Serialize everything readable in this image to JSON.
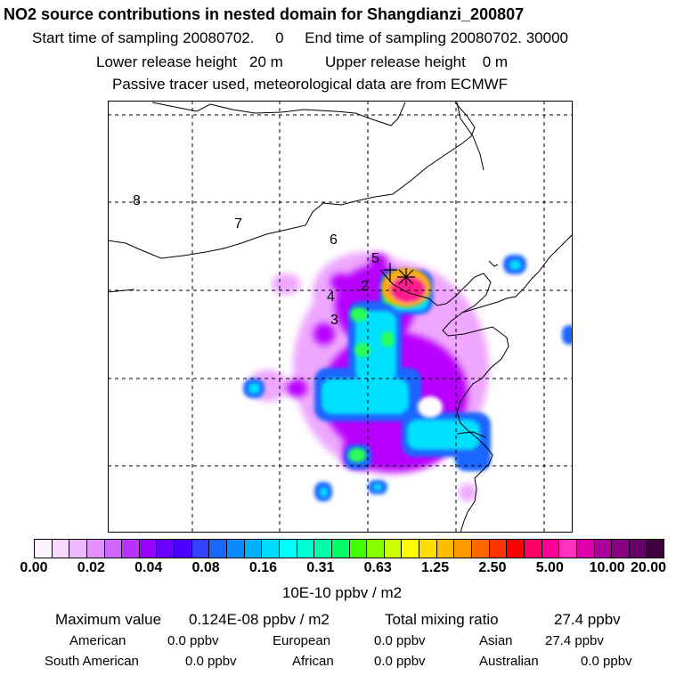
{
  "header": {
    "title": "NO2 source contributions in nested domain for Shangdianzi_200807",
    "sampling_line": "Start time of sampling 20080702.     0     End time of sampling 20080702. 30000",
    "release_line": "Lower release height   20 m          Upper release height    0 m",
    "tracer_line": "Passive tracer used, meteorological data are from ECMWF"
  },
  "map": {
    "contour_labels": [
      "8",
      "7",
      "6",
      "5",
      "4",
      "2",
      "3"
    ],
    "receptor_marker": "receptor-star-icon",
    "colors": {
      "plume_core": "#ff1f8c",
      "plume_mid": "#ffb000",
      "plume_green": "#29ff55",
      "plume_cyan": "#00ffff",
      "plume_blue": "#00a0ff",
      "plume_violet": "#b800ff",
      "plume_light": "#eea6ff"
    }
  },
  "scale": {
    "colors": [
      "#fff3ff",
      "#f8d8ff",
      "#eeb8ff",
      "#e290ff",
      "#cc66ff",
      "#b833ff",
      "#9900ff",
      "#6a00ff",
      "#4b00ff",
      "#3344ff",
      "#1a66ff",
      "#0a8cff",
      "#00b0ff",
      "#00ddff",
      "#00ffff",
      "#00ffd5",
      "#00ffaa",
      "#00ff66",
      "#44ff00",
      "#88ff00",
      "#ccff00",
      "#ffff00",
      "#ffdd00",
      "#ffbb00",
      "#ff9900",
      "#ff6600",
      "#ff3300",
      "#ff0000",
      "#ff0066",
      "#ff0099",
      "#ff33bb",
      "#dd00aa",
      "#aa0099",
      "#880080",
      "#660066",
      "#3d003d"
    ],
    "ticks": [
      "0.00",
      "0.02",
      "0.04",
      "0.08",
      "0.16",
      "0.31",
      "0.63",
      "1.25",
      "2.50",
      "5.00",
      "10.00",
      "20.00"
    ],
    "units": "10E-10 ppbv / m2"
  },
  "summary": {
    "max_label": "Maximum value",
    "max_value": "0.124E-08 ppbv / m2",
    "total_label": "Total mixing ratio",
    "total_value": "27.4 ppbv",
    "regions": [
      {
        "name": "American",
        "value": "0.0 ppbv"
      },
      {
        "name": "European",
        "value": "0.0 ppbv"
      },
      {
        "name": "Asian",
        "value": "27.4 ppbv"
      },
      {
        "name": "South American",
        "value": "0.0 ppbv"
      },
      {
        "name": "African",
        "value": "0.0 ppbv"
      },
      {
        "name": "Australian",
        "value": "0.0 ppbv"
      }
    ]
  }
}
